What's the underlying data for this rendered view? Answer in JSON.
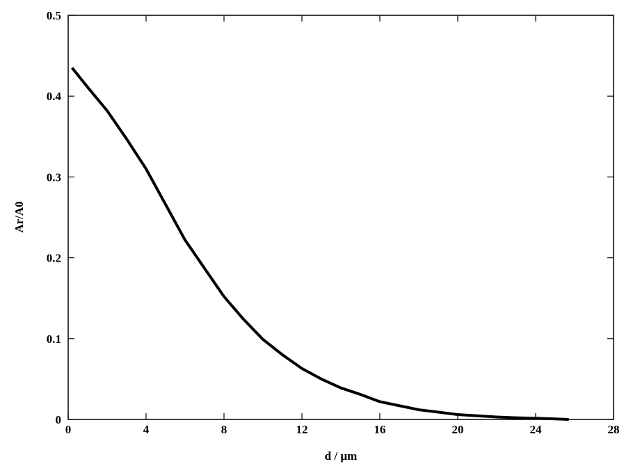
{
  "chart_data": {
    "type": "line",
    "x_label": "d / µm",
    "y_label": "Ar/A0",
    "x": [
      0.2,
      1,
      2,
      3,
      4,
      5,
      6,
      7,
      8,
      9,
      10,
      11,
      12,
      13,
      14,
      15,
      16,
      17,
      18,
      19,
      20,
      21,
      22,
      23,
      24,
      25,
      25.7
    ],
    "series": [
      {
        "name": "Ar/A0",
        "color": "#000000",
        "values": [
          0.435,
          0.411,
          0.382,
          0.347,
          0.31,
          0.266,
          0.222,
          0.187,
          0.152,
          0.124,
          0.099,
          0.08,
          0.063,
          0.05,
          0.039,
          0.031,
          0.022,
          0.017,
          0.012,
          0.009,
          0.006,
          0.0045,
          0.003,
          0.002,
          0.0015,
          0.0007,
          0
        ]
      }
    ],
    "xlim": [
      0,
      28
    ],
    "xticks": [
      0,
      4,
      8,
      12,
      16,
      20,
      24,
      28
    ],
    "ylim": [
      0,
      0.5
    ],
    "yticks": [
      0,
      0.1,
      0.2,
      0.3,
      0.4,
      0.5
    ]
  }
}
